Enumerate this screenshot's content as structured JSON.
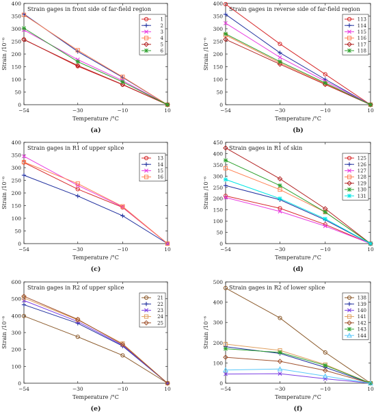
{
  "chart_data": [
    {
      "type": "line",
      "title": "Strain gages in front side of far-field region",
      "xlabel": "Temperature /°C",
      "ylabel": "Strain /10⁻⁶",
      "caption": "(a)",
      "x": [
        "-54",
        "-30",
        "-10",
        "10"
      ],
      "ylim": [
        0,
        400
      ],
      "yticks": [
        0,
        50,
        100,
        150,
        200,
        250,
        300,
        350,
        400
      ],
      "series": [
        {
          "name": "1",
          "color": "#d62728",
          "marker": "circle",
          "values": [
            258,
            152,
            79,
            0
          ]
        },
        {
          "name": "2",
          "color": "#1f2f9e",
          "marker": "plus",
          "values": [
            358,
            210,
            108,
            0
          ]
        },
        {
          "name": "3",
          "color": "#e83be0",
          "marker": "x",
          "values": [
            295,
            178,
            95,
            0
          ]
        },
        {
          "name": "4",
          "color": "#ff7f50",
          "marker": "square",
          "values": [
            355,
            215,
            110,
            0
          ]
        },
        {
          "name": "5",
          "color": "#b22222",
          "marker": "diamond",
          "values": [
            257,
            155,
            80,
            0
          ]
        },
        {
          "name": "6",
          "color": "#2ca02c",
          "marker": "star",
          "values": [
            302,
            170,
            90,
            0
          ]
        }
      ]
    },
    {
      "type": "line",
      "title": "Strain gages in reverse side of far-field region",
      "xlabel": "Temperature /°C",
      "ylabel": "Strain /10⁻⁶",
      "caption": "(b)",
      "x": [
        "-54",
        "-30",
        "-10",
        "10"
      ],
      "ylim": [
        0,
        400
      ],
      "yticks": [
        0,
        50,
        100,
        150,
        200,
        250,
        300,
        350,
        400
      ],
      "series": [
        {
          "name": "113",
          "color": "#d62728",
          "marker": "circle",
          "values": [
            397,
            240,
            120,
            0
          ]
        },
        {
          "name": "114",
          "color": "#1f2f9e",
          "marker": "plus",
          "values": [
            357,
            205,
            100,
            0
          ]
        },
        {
          "name": "115",
          "color": "#e83be0",
          "marker": "x",
          "values": [
            322,
            187,
            93,
            0
          ]
        },
        {
          "name": "116",
          "color": "#ff7f50",
          "marker": "square",
          "values": [
            275,
            165,
            83,
            0
          ]
        },
        {
          "name": "117",
          "color": "#b22222",
          "marker": "diamond",
          "values": [
            258,
            160,
            80,
            0
          ]
        },
        {
          "name": "118",
          "color": "#2ca02c",
          "marker": "star",
          "values": [
            280,
            170,
            86,
            0
          ]
        }
      ]
    },
    {
      "type": "line",
      "title": "Strain gages in R1 of upper splice",
      "xlabel": "Temperature /°C",
      "ylabel": "Strain /10⁻⁶",
      "caption": "(c)",
      "x": [
        "-54",
        "-30",
        "-10",
        "10"
      ],
      "ylim": [
        0,
        400
      ],
      "yticks": [
        0,
        50,
        100,
        150,
        200,
        250,
        300,
        350,
        400
      ],
      "series": [
        {
          "name": "13",
          "color": "#d62728",
          "marker": "circle",
          "values": [
            320,
            215,
            143,
            0
          ]
        },
        {
          "name": "14",
          "color": "#1f2f9e",
          "marker": "plus",
          "values": [
            270,
            188,
            110,
            0
          ]
        },
        {
          "name": "15",
          "color": "#e83be0",
          "marker": "x",
          "values": [
            345,
            230,
            145,
            0
          ]
        },
        {
          "name": "16",
          "color": "#ff7f50",
          "marker": "square",
          "values": [
            322,
            237,
            147,
            0
          ]
        }
      ]
    },
    {
      "type": "line",
      "title": "Strain gages in R1 of skin",
      "xlabel": "Temperature /°C",
      "ylabel": "Strain /10⁻⁶",
      "caption": "(d)",
      "x": [
        "-54",
        "-30",
        "-10",
        "10"
      ],
      "ylim": [
        0,
        450
      ],
      "yticks": [
        0,
        50,
        100,
        150,
        200,
        250,
        300,
        350,
        400,
        450
      ],
      "series": [
        {
          "name": "125",
          "color": "#d62728",
          "marker": "circle",
          "values": [
            212,
            157,
            85,
            0
          ]
        },
        {
          "name": "126",
          "color": "#1f2f9e",
          "marker": "plus",
          "values": [
            258,
            195,
            105,
            0
          ]
        },
        {
          "name": "127",
          "color": "#e83be0",
          "marker": "x",
          "values": [
            205,
            143,
            78,
            0
          ]
        },
        {
          "name": "128",
          "color": "#ff7f50",
          "marker": "square",
          "values": [
            335,
            240,
            140,
            0
          ]
        },
        {
          "name": "129",
          "color": "#b22222",
          "marker": "diamond",
          "values": [
            425,
            288,
            155,
            0
          ]
        },
        {
          "name": "130",
          "color": "#2ca02c",
          "marker": "star",
          "values": [
            370,
            258,
            140,
            0
          ]
        },
        {
          "name": "131",
          "color": "#00e5e5",
          "marker": "asterisk",
          "values": [
            285,
            200,
            110,
            0
          ]
        }
      ]
    },
    {
      "type": "line",
      "title": "Strain gages in R2 of upper splice",
      "xlabel": "Temperature /°C",
      "ylabel": "Strain /10⁻⁶",
      "caption": "(e)",
      "x": [
        "-54",
        "-30",
        "-10",
        "10"
      ],
      "ylim": [
        0,
        600
      ],
      "yticks": [
        0,
        100,
        200,
        300,
        400,
        500,
        600
      ],
      "series": [
        {
          "name": "21",
          "color": "#8b5a2b",
          "marker": "circle",
          "values": [
            398,
            275,
            165,
            0
          ]
        },
        {
          "name": "22",
          "color": "#1f2f9e",
          "marker": "plus",
          "values": [
            465,
            355,
            220,
            0
          ]
        },
        {
          "name": "23",
          "color": "#7b3fe4",
          "marker": "x",
          "values": [
            490,
            365,
            225,
            0
          ]
        },
        {
          "name": "24",
          "color": "#e0a060",
          "marker": "square",
          "values": [
            505,
            375,
            235,
            0
          ]
        },
        {
          "name": "25",
          "color": "#a0522d",
          "marker": "diamond",
          "values": [
            515,
            378,
            230,
            0
          ]
        }
      ]
    },
    {
      "type": "line",
      "title": "Strain gages in R2 of lower splice",
      "xlabel": "Temperature /°C",
      "ylabel": "Strain /10⁻⁶",
      "caption": "(f)",
      "x": [
        "-54",
        "-30",
        "-10",
        "10"
      ],
      "ylim": [
        0,
        500
      ],
      "yticks": [
        0,
        100,
        200,
        300,
        400,
        500
      ],
      "series": [
        {
          "name": "138",
          "color": "#8b5a2b",
          "marker": "circle",
          "values": [
            470,
            322,
            152,
            0
          ]
        },
        {
          "name": "139",
          "color": "#1f2f9e",
          "marker": "plus",
          "values": [
            180,
            147,
            78,
            0
          ]
        },
        {
          "name": "140",
          "color": "#7b3fe4",
          "marker": "x",
          "values": [
            45,
            47,
            22,
            0
          ]
        },
        {
          "name": "141",
          "color": "#e0a060",
          "marker": "square",
          "values": [
            193,
            162,
            92,
            0
          ]
        },
        {
          "name": "142",
          "color": "#a0522d",
          "marker": "diamond",
          "values": [
            128,
            108,
            63,
            0
          ]
        },
        {
          "name": "143",
          "color": "#2ca02c",
          "marker": "star",
          "values": [
            170,
            152,
            88,
            0
          ]
        },
        {
          "name": "144",
          "color": "#5ac8fa",
          "marker": "triangle",
          "values": [
            65,
            70,
            35,
            0
          ]
        }
      ]
    }
  ]
}
